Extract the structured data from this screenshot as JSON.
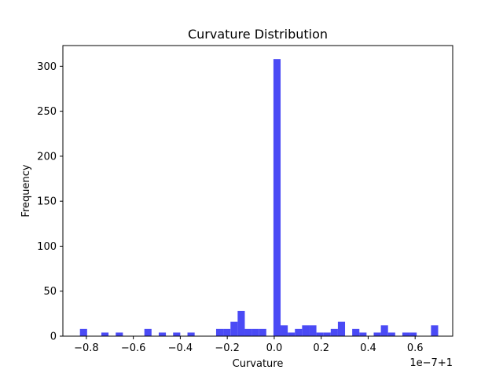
{
  "chart_data": {
    "type": "bar",
    "title": "Curvature Distribution",
    "xlabel": "Curvature",
    "ylabel": "Frequency",
    "x_offset_label": "1e−7+1",
    "xlim": [
      -0.9,
      0.76
    ],
    "ylim": [
      0,
      323
    ],
    "bar_color": "#4a4af5",
    "bin_width": 0.0305,
    "xticks": [
      {
        "value": -0.8,
        "label": "−0.8"
      },
      {
        "value": -0.6,
        "label": "−0.6"
      },
      {
        "value": -0.4,
        "label": "−0.4"
      },
      {
        "value": -0.2,
        "label": "−0.2"
      },
      {
        "value": 0.0,
        "label": "0.0"
      },
      {
        "value": 0.2,
        "label": "0.2"
      },
      {
        "value": 0.4,
        "label": "0.4"
      },
      {
        "value": 0.6,
        "label": "0.6"
      }
    ],
    "yticks": [
      {
        "value": 0,
        "label": "0"
      },
      {
        "value": 50,
        "label": "50"
      },
      {
        "value": 100,
        "label": "100"
      },
      {
        "value": 150,
        "label": "150"
      },
      {
        "value": 200,
        "label": "200"
      },
      {
        "value": 250,
        "label": "250"
      },
      {
        "value": 300,
        "label": "300"
      }
    ],
    "bins": [
      {
        "x": -0.8273,
        "count": 8
      },
      {
        "x": -0.7361,
        "count": 4
      },
      {
        "x": -0.6749,
        "count": 4
      },
      {
        "x": -0.553,
        "count": 8
      },
      {
        "x": -0.4918,
        "count": 4
      },
      {
        "x": -0.4306,
        "count": 4
      },
      {
        "x": -0.3694,
        "count": 4
      },
      {
        "x": -0.2475,
        "count": 8
      },
      {
        "x": -0.217,
        "count": 8
      },
      {
        "x": -0.1863,
        "count": 16
      },
      {
        "x": -0.1558,
        "count": 28
      },
      {
        "x": -0.1253,
        "count": 8
      },
      {
        "x": -0.0948,
        "count": 8
      },
      {
        "x": -0.0643,
        "count": 8
      },
      {
        "x": -0.0034,
        "count": 308
      },
      {
        "x": 0.0271,
        "count": 12
      },
      {
        "x": 0.0576,
        "count": 4
      },
      {
        "x": 0.0881,
        "count": 8
      },
      {
        "x": 0.1186,
        "count": 12
      },
      {
        "x": 0.1491,
        "count": 12
      },
      {
        "x": 0.1796,
        "count": 4
      },
      {
        "x": 0.2101,
        "count": 4
      },
      {
        "x": 0.2406,
        "count": 8
      },
      {
        "x": 0.2711,
        "count": 16
      },
      {
        "x": 0.3321,
        "count": 8
      },
      {
        "x": 0.3626,
        "count": 4
      },
      {
        "x": 0.4236,
        "count": 4
      },
      {
        "x": 0.4541,
        "count": 12
      },
      {
        "x": 0.4846,
        "count": 4
      },
      {
        "x": 0.5456,
        "count": 4
      },
      {
        "x": 0.5761,
        "count": 4
      },
      {
        "x": 0.6676,
        "count": 12
      }
    ]
  }
}
